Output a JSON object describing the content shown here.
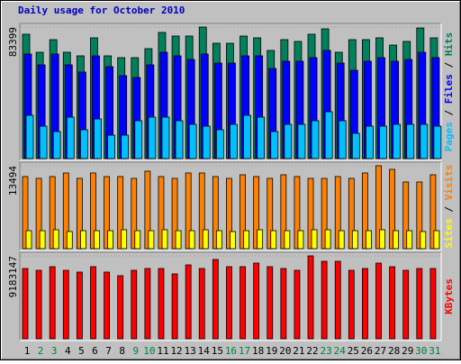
{
  "chart_data": {
    "type": "bar",
    "title": "Daily usage for October 2010",
    "title_color": "#0000c0",
    "categories": [
      "1",
      "2",
      "3",
      "4",
      "5",
      "6",
      "7",
      "8",
      "9",
      "10",
      "11",
      "12",
      "13",
      "14",
      "15",
      "16",
      "17",
      "18",
      "19",
      "20",
      "21",
      "22",
      "23",
      "24",
      "25",
      "26",
      "27",
      "28",
      "29",
      "30",
      "31"
    ],
    "category_colors": [
      "#000000",
      "#008040",
      "#008040",
      "#000000",
      "#000000",
      "#000000",
      "#000000",
      "#000000",
      "#008040",
      "#008040",
      "#000000",
      "#000000",
      "#000000",
      "#000000",
      "#000000",
      "#008040",
      "#008040",
      "#000000",
      "#000000",
      "#000000",
      "#000000",
      "#000000",
      "#008040",
      "#008040",
      "#000000",
      "#000000",
      "#000000",
      "#000000",
      "#000000",
      "#008040",
      "#008040"
    ],
    "legend_separator": " / ",
    "panels": [
      {
        "ylim": [
          0,
          83399
        ],
        "yticks": [
          83399
        ],
        "series": [
          {
            "name": "Pages",
            "color": "#00c0ff",
            "values": [
              27420,
              20560,
              17140,
              26280,
              18280,
              25130,
              14850,
              14850,
              23990,
              26280,
              26280,
              23990,
              21710,
              20560,
              18280,
              21710,
              27420,
              26280,
              17140,
              21710,
              21710,
              23990,
              29700,
              23990,
              15990,
              20560,
              20560,
              21710,
              21710,
              21710,
              20560
            ]
          },
          {
            "name": "Files",
            "color": "#0000ff",
            "values": [
              66260,
              59400,
              66260,
              59400,
              54840,
              65120,
              58260,
              52550,
              51410,
              59400,
              67400,
              65120,
              62830,
              66260,
              60550,
              60550,
              65120,
              65120,
              57120,
              61690,
              61690,
              63970,
              68550,
              60550,
              55980,
              61690,
              63970,
              61690,
              62830,
              67400,
              63970
            ]
          },
          {
            "name": "Hits",
            "color": "#00805c",
            "values": [
              78830,
              67400,
              75400,
              67400,
              65120,
              76540,
              65120,
              63970,
              63970,
              69690,
              79970,
              77690,
              77690,
              83399,
              73120,
              73120,
              77690,
              76540,
              68550,
              75400,
              74260,
              78830,
              82260,
              67400,
              75400,
              75400,
              76540,
              71970,
              74260,
              82800,
              76540
            ]
          }
        ]
      },
      {
        "ylim": [
          0,
          13494
        ],
        "yticks": [
          13494
        ],
        "series": [
          {
            "name": "Sites",
            "color": "#ffff00",
            "values": [
              2930,
              2930,
              3080,
              2790,
              2930,
              2930,
              2930,
              3080,
              2930,
              2930,
              3080,
              2930,
              2930,
              3080,
              2930,
              2790,
              2930,
              3080,
              2930,
              2930,
              2930,
              3080,
              3080,
              2930,
              2930,
              2930,
              3080,
              2930,
              2930,
              2790,
              2930
            ]
          },
          {
            "name": "Visits",
            "color": "#ff8000",
            "values": [
              11736,
              11443,
              11736,
              12323,
              11443,
              12323,
              11736,
              11736,
              11443,
              12616,
              11736,
              11443,
              12323,
              12323,
              11736,
              11443,
              12029,
              11736,
              11443,
              12029,
              11736,
              11443,
              11443,
              11736,
              11443,
              12323,
              13494,
              12910,
              10856,
              10856,
              12029
            ]
          }
        ]
      },
      {
        "ylim": [
          0,
          9183147
        ],
        "yticks": [
          9183147
        ],
        "series": [
          {
            "name": "KBytes",
            "color": "#ff0000",
            "values": [
              7785700,
              7586100,
              7985400,
              7586100,
              7386500,
              7985400,
              7386500,
              6987200,
              7586100,
              7785700,
              7785700,
              7186800,
              8185000,
              7785700,
              8784000,
              7985400,
              7985400,
              8384600,
              7985400,
              7785700,
              7586100,
              9183147,
              8584300,
              8584300,
              7586100,
              7785700,
              8384600,
              7985400,
              7586100,
              7785700,
              7785700
            ]
          }
        ]
      }
    ]
  }
}
